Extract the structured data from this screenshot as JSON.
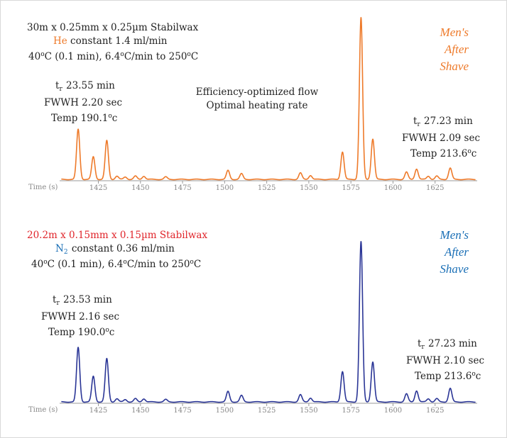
{
  "colors": {
    "top_trace": "#ee7a2a",
    "bottom_trace": "#2a3596",
    "accent_red": "#e0242a",
    "brand_top": "#ee7a2a",
    "brand_bottom": "#1a6fb6",
    "axis": "#999999"
  },
  "panels": [
    {
      "column": {
        "prefix": "30m x 0.25mm x 0.25",
        "unit": "µm",
        "suffix": " Stabilwax"
      },
      "gas": {
        "name": "He",
        "rest": " constant 1.4 ml/min"
      },
      "program": {
        "p1": "40",
        "p2": "C (0.1 min), 6.4",
        "p3": "C/min to 250",
        "p4": "C",
        "deg": "o"
      },
      "brand": [
        "Men's",
        "After",
        "Shave"
      ],
      "peak_left": {
        "t": "t",
        "r": "r",
        "time": " 23.55 min",
        "fwhh": "FWWH 2.20 sec",
        "temp_a": "Temp 190.1",
        "deg": "o",
        "temp_b": "c"
      },
      "peak_right": {
        "t": "t",
        "r": "r",
        "time": " 27.23 min",
        "fwhh": "FWWH 2.09 sec",
        "temp_a": "Temp 213.6",
        "deg": "o",
        "temp_b": "c"
      },
      "note": [
        "Efficiency-optimized flow",
        "Optimal heating rate"
      ]
    },
    {
      "column": {
        "prefix": "20.2m x 0.15mm x 0.15",
        "unit": "µm",
        "suffix": " Stabilwax"
      },
      "gas": {
        "name": "N",
        "sub": "2",
        "rest": " constant 0.36 ml/min"
      },
      "program": {
        "p1": "40",
        "p2": "C (0.1 min), 6.4",
        "p3": "C/min to 250",
        "p4": "C",
        "deg": "o"
      },
      "brand": [
        "Men's",
        "After",
        "Shave"
      ],
      "peak_left": {
        "t": "t",
        "r": "r",
        "time": " 23.53 min",
        "fwhh": "FWWH 2.16 sec",
        "temp_a": "Temp 190.0",
        "deg": "o",
        "temp_b": "c"
      },
      "peak_right": {
        "t": "t",
        "r": "r",
        "time": " 27.23 min",
        "fwhh": "FWWH 2.10 sec",
        "temp_a": "Temp 213.6",
        "deg": "o",
        "temp_b": "c"
      }
    }
  ],
  "chart_data": [
    {
      "type": "line",
      "xlabel": "Time (s)",
      "xlim": [
        1402,
        1650
      ],
      "ylim": [
        0,
        1
      ],
      "xticks": [
        1425,
        1450,
        1475,
        1500,
        1525,
        1550,
        1575,
        1600,
        1625
      ],
      "series": [
        {
          "peaks": [
            {
              "t": 1413,
              "h": 0.31
            },
            {
              "t": 1422,
              "h": 0.14
            },
            {
              "t": 1430,
              "h": 0.24
            },
            {
              "t": 1436,
              "h": 0.02
            },
            {
              "t": 1441,
              "h": 0.015
            },
            {
              "t": 1447,
              "h": 0.02
            },
            {
              "t": 1452,
              "h": 0.02
            },
            {
              "t": 1465,
              "h": 0.015
            },
            {
              "t": 1502,
              "h": 0.055
            },
            {
              "t": 1510,
              "h": 0.035
            },
            {
              "t": 1545,
              "h": 0.04
            },
            {
              "t": 1551,
              "h": 0.025
            },
            {
              "t": 1570,
              "h": 0.17
            },
            {
              "t": 1581,
              "h": 1.0
            },
            {
              "t": 1588,
              "h": 0.25
            },
            {
              "t": 1608,
              "h": 0.045
            },
            {
              "t": 1614,
              "h": 0.065
            },
            {
              "t": 1621,
              "h": 0.02
            },
            {
              "t": 1626,
              "h": 0.02
            },
            {
              "t": 1634,
              "h": 0.07
            }
          ]
        }
      ]
    },
    {
      "type": "line",
      "xlabel": "Time (s)",
      "xlim": [
        1402,
        1650
      ],
      "ylim": [
        0,
        1
      ],
      "xticks": [
        1425,
        1450,
        1475,
        1500,
        1525,
        1550,
        1575,
        1600,
        1625
      ],
      "series": [
        {
          "peaks": [
            {
              "t": 1413,
              "h": 0.34
            },
            {
              "t": 1422,
              "h": 0.16
            },
            {
              "t": 1430,
              "h": 0.27
            },
            {
              "t": 1436,
              "h": 0.02
            },
            {
              "t": 1441,
              "h": 0.015
            },
            {
              "t": 1447,
              "h": 0.02
            },
            {
              "t": 1452,
              "h": 0.02
            },
            {
              "t": 1465,
              "h": 0.015
            },
            {
              "t": 1502,
              "h": 0.065
            },
            {
              "t": 1510,
              "h": 0.04
            },
            {
              "t": 1545,
              "h": 0.045
            },
            {
              "t": 1551,
              "h": 0.025
            },
            {
              "t": 1570,
              "h": 0.19
            },
            {
              "t": 1581,
              "h": 1.0
            },
            {
              "t": 1588,
              "h": 0.25
            },
            {
              "t": 1608,
              "h": 0.05
            },
            {
              "t": 1614,
              "h": 0.07
            },
            {
              "t": 1621,
              "h": 0.02
            },
            {
              "t": 1626,
              "h": 0.02
            },
            {
              "t": 1634,
              "h": 0.085
            }
          ]
        }
      ]
    }
  ]
}
